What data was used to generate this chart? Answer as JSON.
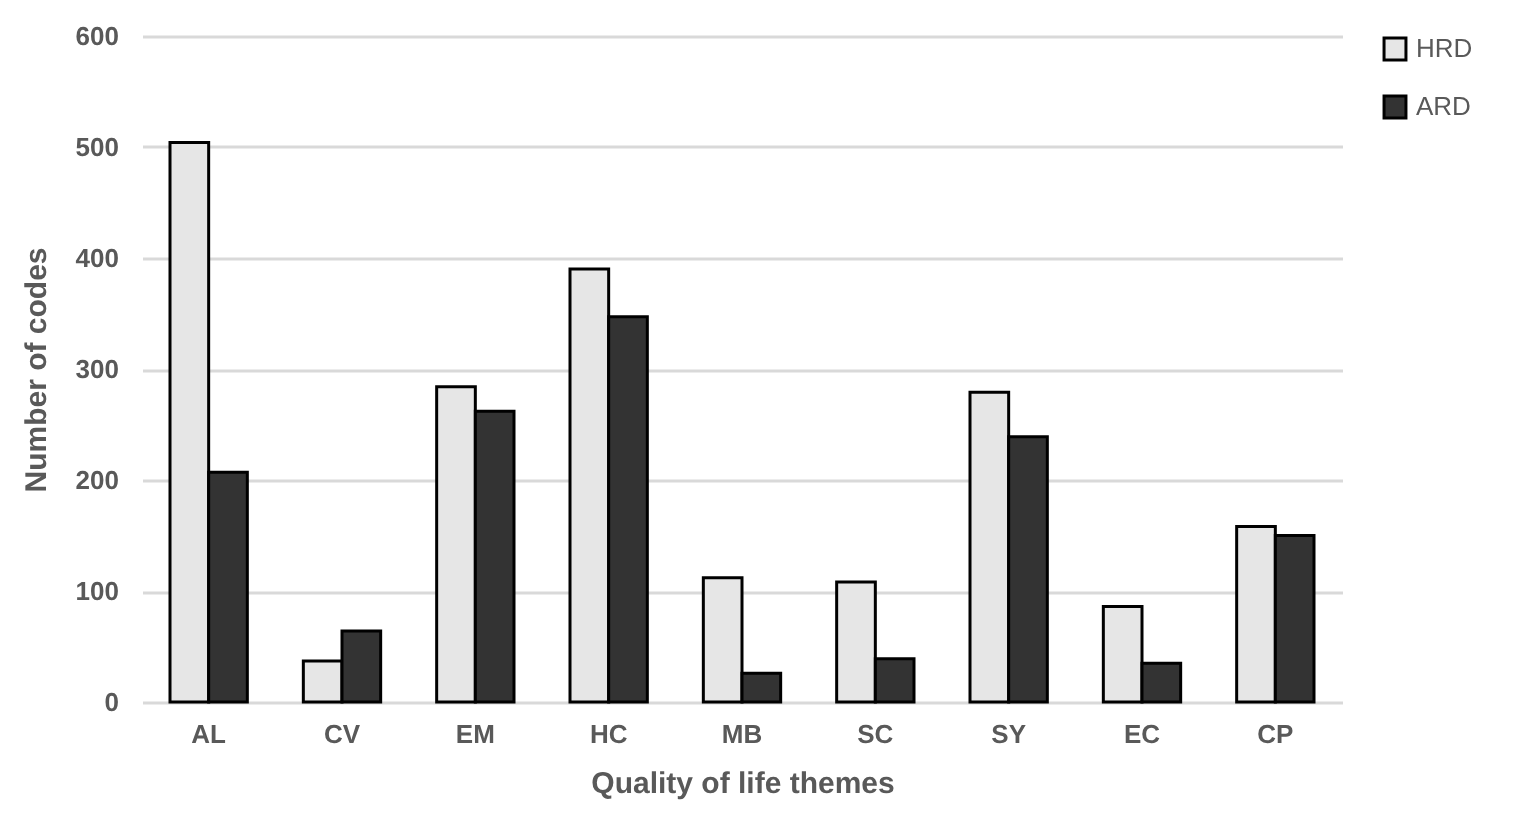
{
  "chart_data": {
    "type": "bar",
    "xlabel": "Quality of life themes",
    "ylabel": "Number of codes",
    "categories": [
      "AL",
      "CV",
      "EM",
      "HC",
      "MB",
      "SC",
      "SY",
      "EC",
      "CP"
    ],
    "series": [
      {
        "name": "HRD",
        "color": "#e6e6e6",
        "values": [
          504,
          37,
          284,
          390,
          112,
          108,
          279,
          86,
          158
        ]
      },
      {
        "name": "ARD",
        "color": "#333333",
        "values": [
          207,
          64,
          262,
          347,
          26,
          39,
          239,
          35,
          150
        ]
      }
    ],
    "ylim": [
      0,
      600
    ],
    "yticks": [
      0,
      100,
      200,
      300,
      400,
      500,
      600
    ],
    "grid": "y",
    "legend": "right"
  }
}
